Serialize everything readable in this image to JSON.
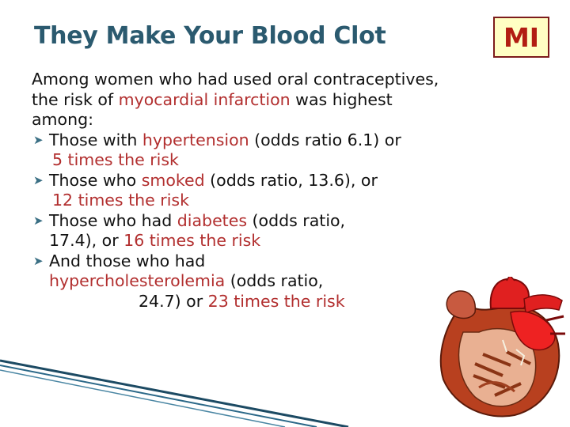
{
  "slide": {
    "title": "They Make Your Blood Clot",
    "badge": "MI"
  },
  "body": {
    "intro_1": "Among women who had used oral contraceptives,",
    "intro_2a": "the risk of ",
    "intro_2b": "myocardial infarction",
    "intro_2c": " was highest",
    "intro_3": "among:",
    "b1_a": "Those with ",
    "b1_b": "hypertension",
    "b1_c": " (odds ratio 6.1) or",
    "b1_d": "5 times the risk",
    "b2_a": "Those who ",
    "b2_b": "smoked",
    "b2_c": " (odds ratio, 13.6), or",
    "b2_d": "12 times the risk",
    "b3_a": "Those who had ",
    "b3_b": "diabetes",
    "b3_c": " (odds ratio,",
    "b3_d": "17.4), or ",
    "b3_e": "16 times the risk",
    "b4_a": "And those who had",
    "b4_b": "hypercholesterolemia",
    "b4_c": " (odds ratio,",
    "b4_d": "24.7) or ",
    "b4_e": "23 times the risk"
  },
  "colors": {
    "title": "#2b5a6f",
    "highlight": "#b22f2f",
    "badge_border": "#7d1c1c",
    "badge_bg": "#ffffc4",
    "badge_text": "#b21d12"
  },
  "icons": [
    "bullet-icon",
    "heart-illustration"
  ]
}
